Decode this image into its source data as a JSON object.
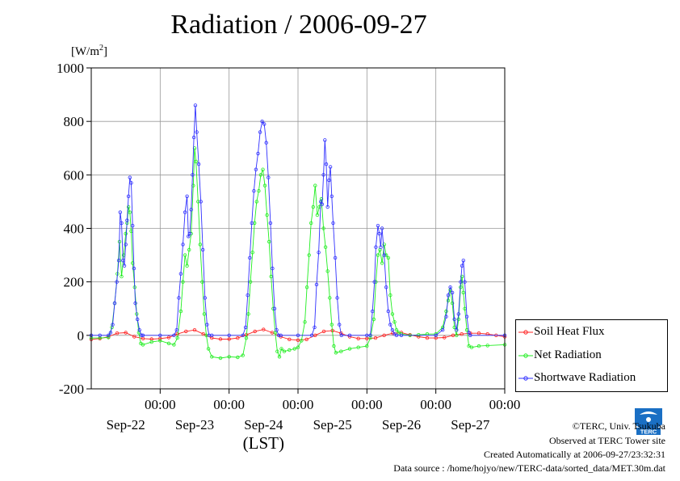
{
  "title": "Radiation / 2006-09-27",
  "unit_label": "[W/m",
  "unit_sup": "2",
  "unit_close": "]",
  "chart_data": {
    "type": "line",
    "title": "Radiation / 2006-09-27",
    "ylabel": "[W/m2]",
    "xlabel": "(LST)",
    "ylim": [
      -200,
      1000
    ],
    "yticks": [
      1000,
      800,
      600,
      400,
      200,
      0,
      -200
    ],
    "xlim_days": [
      -1,
      5
    ],
    "time_ticks": [
      "00:00",
      "00:00",
      "00:00",
      "00:00",
      "00:00",
      "00:00"
    ],
    "date_labels": [
      "Sep-22",
      "Sep-23",
      "Sep-24",
      "Sep-25",
      "Sep-26",
      "Sep-27"
    ],
    "grid": true,
    "legend_position": "bottom-right",
    "series": [
      {
        "name": "Soil Heat Flux",
        "color": "#ff2020",
        "marker": "circle",
        "points": [
          [
            -1.0,
            -15
          ],
          [
            -0.875,
            -12
          ],
          [
            -0.75,
            -5
          ],
          [
            -0.625,
            8
          ],
          [
            -0.5,
            10
          ],
          [
            -0.375,
            -5
          ],
          [
            -0.25,
            -12
          ],
          [
            -0.125,
            -14
          ],
          [
            0.0,
            -12
          ],
          [
            0.125,
            -8
          ],
          [
            0.25,
            5
          ],
          [
            0.375,
            15
          ],
          [
            0.5,
            20
          ],
          [
            0.625,
            5
          ],
          [
            0.75,
            -10
          ],
          [
            0.875,
            -14
          ],
          [
            1.0,
            -14
          ],
          [
            1.125,
            -10
          ],
          [
            1.25,
            2
          ],
          [
            1.375,
            15
          ],
          [
            1.5,
            22
          ],
          [
            1.625,
            10
          ],
          [
            1.75,
            -5
          ],
          [
            1.875,
            -15
          ],
          [
            2.0,
            -18
          ],
          [
            2.125,
            -15
          ],
          [
            2.25,
            0
          ],
          [
            2.375,
            15
          ],
          [
            2.5,
            18
          ],
          [
            2.625,
            8
          ],
          [
            2.75,
            -5
          ],
          [
            2.875,
            -12
          ],
          [
            3.0,
            -12
          ],
          [
            3.125,
            -10
          ],
          [
            3.25,
            0
          ],
          [
            3.375,
            8
          ],
          [
            3.5,
            10
          ],
          [
            3.625,
            2
          ],
          [
            3.75,
            -5
          ],
          [
            3.875,
            -10
          ],
          [
            4.0,
            -10
          ],
          [
            4.125,
            -8
          ],
          [
            4.25,
            0
          ],
          [
            4.375,
            5
          ],
          [
            4.5,
            8
          ],
          [
            4.625,
            8
          ],
          [
            4.75,
            5
          ],
          [
            4.875,
            0
          ],
          [
            5.0,
            -5
          ]
        ]
      },
      {
        "name": "Net Radiation",
        "color": "#20ee20",
        "marker": "circle",
        "points": [
          [
            -1.0,
            -10
          ],
          [
            -0.875,
            -10
          ],
          [
            -0.75,
            -8
          ],
          [
            -0.7,
            30
          ],
          [
            -0.66,
            120
          ],
          [
            -0.62,
            230
          ],
          [
            -0.59,
            350
          ],
          [
            -0.56,
            220
          ],
          [
            -0.53,
            300
          ],
          [
            -0.5,
            380
          ],
          [
            -0.48,
            420
          ],
          [
            -0.46,
            480
          ],
          [
            -0.44,
            460
          ],
          [
            -0.42,
            390
          ],
          [
            -0.4,
            270
          ],
          [
            -0.37,
            180
          ],
          [
            -0.34,
            80
          ],
          [
            -0.31,
            10
          ],
          [
            -0.28,
            -30
          ],
          [
            -0.25,
            -35
          ],
          [
            -0.125,
            -25
          ],
          [
            0.0,
            -20
          ],
          [
            0.125,
            -30
          ],
          [
            0.2,
            -35
          ],
          [
            0.25,
            -10
          ],
          [
            0.3,
            90
          ],
          [
            0.33,
            200
          ],
          [
            0.36,
            300
          ],
          [
            0.39,
            260
          ],
          [
            0.42,
            320
          ],
          [
            0.45,
            380
          ],
          [
            0.48,
            560
          ],
          [
            0.5,
            700
          ],
          [
            0.52,
            650
          ],
          [
            0.55,
            500
          ],
          [
            0.58,
            340
          ],
          [
            0.61,
            200
          ],
          [
            0.64,
            80
          ],
          [
            0.67,
            0
          ],
          [
            0.7,
            -50
          ],
          [
            0.75,
            -80
          ],
          [
            0.875,
            -85
          ],
          [
            1.0,
            -80
          ],
          [
            1.125,
            -82
          ],
          [
            1.2,
            -75
          ],
          [
            1.25,
            -10
          ],
          [
            1.28,
            80
          ],
          [
            1.31,
            200
          ],
          [
            1.34,
            310
          ],
          [
            1.37,
            420
          ],
          [
            1.4,
            500
          ],
          [
            1.43,
            540
          ],
          [
            1.46,
            600
          ],
          [
            1.49,
            620
          ],
          [
            1.52,
            560
          ],
          [
            1.55,
            450
          ],
          [
            1.58,
            350
          ],
          [
            1.61,
            220
          ],
          [
            1.64,
            100
          ],
          [
            1.67,
            10
          ],
          [
            1.7,
            -60
          ],
          [
            1.73,
            -80
          ],
          [
            1.76,
            -50
          ],
          [
            1.8,
            -60
          ],
          [
            1.875,
            -55
          ],
          [
            1.95,
            -50
          ],
          [
            2.0,
            -45
          ],
          [
            2.05,
            -20
          ],
          [
            2.1,
            50
          ],
          [
            2.13,
            180
          ],
          [
            2.16,
            300
          ],
          [
            2.19,
            420
          ],
          [
            2.22,
            480
          ],
          [
            2.25,
            560
          ],
          [
            2.28,
            450
          ],
          [
            2.31,
            480
          ],
          [
            2.34,
            510
          ],
          [
            2.37,
            400
          ],
          [
            2.4,
            330
          ],
          [
            2.43,
            240
          ],
          [
            2.46,
            140
          ],
          [
            2.49,
            40
          ],
          [
            2.52,
            -40
          ],
          [
            2.55,
            -65
          ],
          [
            2.625,
            -60
          ],
          [
            2.75,
            -50
          ],
          [
            2.875,
            -45
          ],
          [
            3.0,
            -40
          ],
          [
            3.05,
            -10
          ],
          [
            3.1,
            60
          ],
          [
            3.13,
            200
          ],
          [
            3.16,
            300
          ],
          [
            3.19,
            320
          ],
          [
            3.22,
            270
          ],
          [
            3.25,
            340
          ],
          [
            3.28,
            300
          ],
          [
            3.31,
            290
          ],
          [
            3.34,
            150
          ],
          [
            3.37,
            80
          ],
          [
            3.4,
            50
          ],
          [
            3.43,
            20
          ],
          [
            3.46,
            10
          ],
          [
            3.5,
            5
          ],
          [
            3.625,
            0
          ],
          [
            3.75,
            2
          ],
          [
            3.875,
            5
          ],
          [
            4.0,
            5
          ],
          [
            4.1,
            30
          ],
          [
            4.15,
            90
          ],
          [
            4.18,
            130
          ],
          [
            4.21,
            170
          ],
          [
            4.24,
            120
          ],
          [
            4.27,
            30
          ],
          [
            4.3,
            0
          ],
          [
            4.33,
            60
          ],
          [
            4.36,
            180
          ],
          [
            4.38,
            220
          ],
          [
            4.4,
            160
          ],
          [
            4.42,
            100
          ],
          [
            4.45,
            20
          ],
          [
            4.48,
            -40
          ],
          [
            4.52,
            -45
          ],
          [
            4.625,
            -40
          ],
          [
            4.75,
            -38
          ],
          [
            5.0,
            -35
          ]
        ]
      },
      {
        "name": "Shortwave Radiation",
        "color": "#3030ff",
        "marker": "circle",
        "points": [
          [
            -1.0,
            0
          ],
          [
            -0.875,
            0
          ],
          [
            -0.75,
            0
          ],
          [
            -0.72,
            10
          ],
          [
            -0.69,
            40
          ],
          [
            -0.66,
            120
          ],
          [
            -0.63,
            200
          ],
          [
            -0.6,
            280
          ],
          [
            -0.58,
            460
          ],
          [
            -0.56,
            420
          ],
          [
            -0.54,
            280
          ],
          [
            -0.52,
            260
          ],
          [
            -0.5,
            340
          ],
          [
            -0.48,
            430
          ],
          [
            -0.46,
            520
          ],
          [
            -0.44,
            590
          ],
          [
            -0.42,
            570
          ],
          [
            -0.4,
            410
          ],
          [
            -0.38,
            250
          ],
          [
            -0.36,
            120
          ],
          [
            -0.33,
            60
          ],
          [
            -0.3,
            20
          ],
          [
            -0.27,
            0
          ],
          [
            -0.25,
            0
          ],
          [
            0.0,
            0
          ],
          [
            0.2,
            0
          ],
          [
            0.24,
            20
          ],
          [
            0.27,
            140
          ],
          [
            0.3,
            230
          ],
          [
            0.33,
            340
          ],
          [
            0.36,
            460
          ],
          [
            0.39,
            520
          ],
          [
            0.41,
            370
          ],
          [
            0.43,
            380
          ],
          [
            0.45,
            470
          ],
          [
            0.47,
            600
          ],
          [
            0.49,
            740
          ],
          [
            0.51,
            860
          ],
          [
            0.53,
            760
          ],
          [
            0.56,
            640
          ],
          [
            0.59,
            500
          ],
          [
            0.62,
            320
          ],
          [
            0.65,
            140
          ],
          [
            0.68,
            40
          ],
          [
            0.71,
            0
          ],
          [
            0.75,
            0
          ],
          [
            1.0,
            0
          ],
          [
            1.2,
            0
          ],
          [
            1.24,
            30
          ],
          [
            1.27,
            150
          ],
          [
            1.3,
            290
          ],
          [
            1.33,
            420
          ],
          [
            1.36,
            540
          ],
          [
            1.39,
            620
          ],
          [
            1.42,
            680
          ],
          [
            1.45,
            760
          ],
          [
            1.48,
            800
          ],
          [
            1.51,
            790
          ],
          [
            1.54,
            720
          ],
          [
            1.57,
            590
          ],
          [
            1.6,
            420
          ],
          [
            1.63,
            250
          ],
          [
            1.66,
            100
          ],
          [
            1.69,
            20
          ],
          [
            1.72,
            0
          ],
          [
            1.75,
            0
          ],
          [
            2.0,
            0
          ],
          [
            2.2,
            0
          ],
          [
            2.24,
            30
          ],
          [
            2.27,
            190
          ],
          [
            2.3,
            310
          ],
          [
            2.33,
            500
          ],
          [
            2.35,
            490
          ],
          [
            2.37,
            600
          ],
          [
            2.39,
            730
          ],
          [
            2.41,
            640
          ],
          [
            2.43,
            480
          ],
          [
            2.45,
            580
          ],
          [
            2.47,
            630
          ],
          [
            2.49,
            520
          ],
          [
            2.51,
            420
          ],
          [
            2.54,
            290
          ],
          [
            2.57,
            140
          ],
          [
            2.6,
            40
          ],
          [
            2.63,
            0
          ],
          [
            2.75,
            0
          ],
          [
            3.0,
            0
          ],
          [
            3.05,
            0
          ],
          [
            3.08,
            90
          ],
          [
            3.11,
            200
          ],
          [
            3.13,
            330
          ],
          [
            3.16,
            410
          ],
          [
            3.18,
            380
          ],
          [
            3.2,
            330
          ],
          [
            3.22,
            400
          ],
          [
            3.25,
            300
          ],
          [
            3.28,
            180
          ],
          [
            3.31,
            90
          ],
          [
            3.34,
            40
          ],
          [
            3.37,
            20
          ],
          [
            3.4,
            5
          ],
          [
            3.43,
            0
          ],
          [
            3.5,
            0
          ],
          [
            4.0,
            0
          ],
          [
            4.1,
            20
          ],
          [
            4.15,
            70
          ],
          [
            4.18,
            150
          ],
          [
            4.21,
            180
          ],
          [
            4.24,
            160
          ],
          [
            4.27,
            60
          ],
          [
            4.3,
            20
          ],
          [
            4.33,
            80
          ],
          [
            4.36,
            200
          ],
          [
            4.38,
            260
          ],
          [
            4.4,
            280
          ],
          [
            4.42,
            200
          ],
          [
            4.45,
            70
          ],
          [
            4.48,
            10
          ],
          [
            4.5,
            0
          ],
          [
            5.0,
            0
          ]
        ]
      }
    ]
  },
  "legend": [
    {
      "label": "Soil Heat Flux",
      "color": "#ff2020"
    },
    {
      "label": "Net Radiation",
      "color": "#20ee20"
    },
    {
      "label": "Shortwave Radiation",
      "color": "#3030ff"
    }
  ],
  "credits": {
    "copyright": "©TERC, Univ. Tsukuba",
    "observed": "Observed at TERC Tower site",
    "created": "Created Automatically at 2006-09-27/23:32:31",
    "source": "Data source : /home/hojyo/new/TERC-data/sorted_data/MET.30m.dat"
  },
  "logo_text": "TERC"
}
